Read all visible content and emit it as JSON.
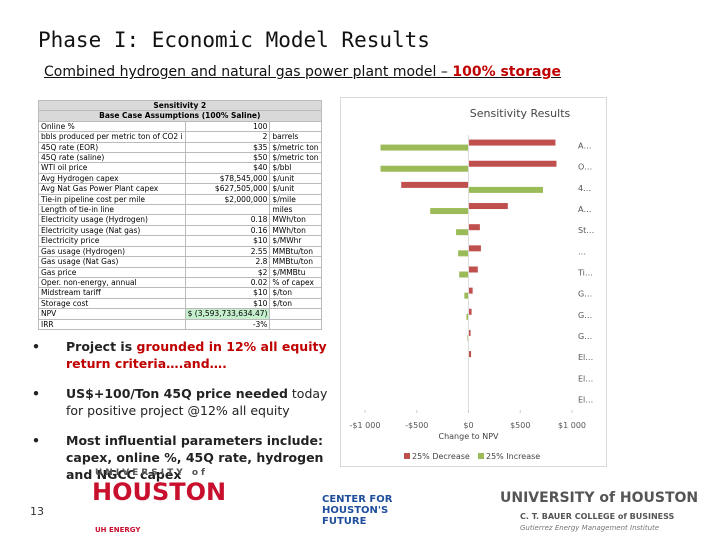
{
  "header": {
    "title": "Phase I: Economic Model Results",
    "subtitle": "Combined hydrogen and natural gas power plant model – ",
    "subtitle_highlight": "100% storage"
  },
  "table": {
    "title": "Sensitivity 2",
    "subtitle": "Base Case Assumptions (100% Saline)",
    "rows": [
      {
        "label": "Online %",
        "value": "100"
      },
      {
        "label": "bbls produced per metric ton of CO2 i",
        "value": "2",
        "unit": "barrels"
      },
      {
        "label": "45Q rate (EOR)",
        "value": "$35",
        "unit": "$/metric ton"
      },
      {
        "label": "45Q rate (saline)",
        "value": "$50",
        "unit": "$/metric ton"
      },
      {
        "label": "WTI oil price",
        "value": "$40",
        "unit": "$/bbl"
      },
      {
        "label": "Avg Hydrogen capex",
        "value": "$78,545,000",
        "unit": "$/unit"
      },
      {
        "label": "Avg Nat Gas Power Plant capex",
        "value": "$627,505,000",
        "unit": "$/unit"
      },
      {
        "label": "Tie-in pipeline cost per mile",
        "value": "$2,000,000",
        "unit": "$/mile"
      },
      {
        "label": "Length of tie-in line",
        "unit": "miles"
      },
      {
        "label": "Electricity usage (Hydrogen)",
        "value": "0.18",
        "unit": "MWh/ton"
      },
      {
        "label": "Electricity usage (Nat gas)",
        "value": "0.16",
        "unit": "MWh/ton"
      },
      {
        "label": "Electricity price",
        "value": "$10",
        "unit": "$/MWhr"
      },
      {
        "label": "Gas usage (Hydrogen)",
        "value": "2.55",
        "unit": "MMBtu/ton"
      },
      {
        "label": "Gas usage (Nat Gas)",
        "value": "2.8",
        "unit": "MMBtu/ton"
      },
      {
        "label": "Gas price",
        "value": "$2",
        "unit": "$/MMBtu"
      },
      {
        "label": "Oper. non-energy, annual",
        "value": "0.02",
        "unit": "% of capex"
      },
      {
        "label": "Midstream tariff",
        "value": "$10",
        "unit": "$/ton"
      },
      {
        "label": "Storage cost",
        "value": "$10",
        "unit": "$/ton"
      },
      {
        "label": "NPV",
        "value": "$ (3,593,733,634.47)"
      },
      {
        "label": "IRR",
        "value": "-3%"
      }
    ]
  },
  "chart_data": {
    "type": "bar",
    "orientation": "horizontal",
    "title": "Sensitivity Results",
    "categories": [
      "A…",
      "O…",
      "4…",
      "A…",
      "St…",
      "…",
      "Ti…",
      "G…",
      "G…",
      "G…",
      "El…",
      "El…",
      "El…"
    ],
    "series": [
      {
        "name": "25% Decrease",
        "color": "#c0504d",
        "values": [
          840,
          850,
          -650,
          380,
          110,
          120,
          90,
          40,
          30,
          20,
          25,
          5,
          5
        ]
      },
      {
        "name": "25% Increase",
        "color": "#9bbb59",
        "values": [
          -850,
          -850,
          720,
          -370,
          -120,
          -100,
          -90,
          -40,
          -20,
          -10,
          -5,
          -5,
          -5
        ]
      }
    ],
    "xlim": [
      -1000,
      1000
    ],
    "xticks": [
      {
        "value": -1000,
        "label": "-$1 000"
      },
      {
        "value": -500,
        "label": "-$500"
      },
      {
        "value": 0,
        "label": "$0"
      },
      {
        "value": 500,
        "label": "$500"
      },
      {
        "value": 1000,
        "label": "$1 000"
      }
    ],
    "xlabel": "Change to NPV",
    "legend": "bottom"
  },
  "bullets": [
    {
      "text": "Project is ",
      "highlight": "grounded in 12% all equity return criteria….and…."
    },
    {
      "text": "US$+100/Ton 45Q price needed",
      "rest": " today for positive project @12% all equity"
    },
    {
      "text": "Most influential parameters include: capex, online %, 45Q rate, hydrogen and NGCC capex"
    }
  ],
  "page_number": "13",
  "logos": {
    "uh_top": "UNIVERSITY of",
    "uh_main": "HOUSTON",
    "uh_sub": "UH ENERGY",
    "chf_1": "CENTER FOR",
    "chf_2": "HOUSTON'S",
    "chf_3": "FUTURE",
    "bauer_1": "UNIVERSITY of HOUSTON",
    "bauer_2": "C. T. BAUER COLLEGE of BUSINESS",
    "bauer_3": "Gutierrez Energy Management Institute"
  }
}
